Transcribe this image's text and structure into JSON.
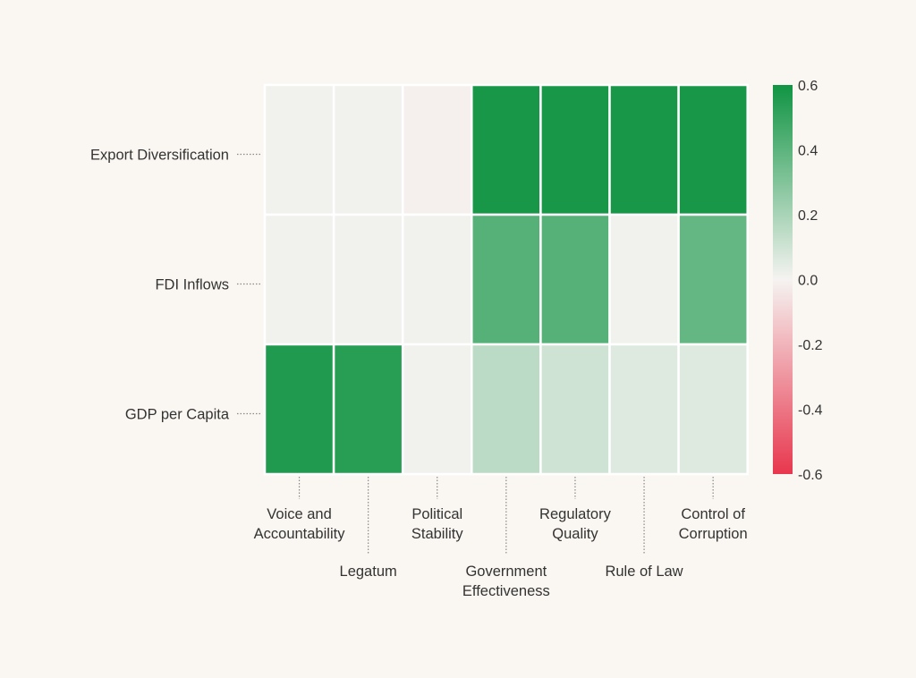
{
  "chart_data": {
    "type": "heatmap",
    "title": "",
    "xlabel": "",
    "ylabel": "",
    "rows": [
      "Export Diversification",
      "FDI Inflows",
      "GDP per Capita"
    ],
    "columns": [
      [
        "Voice and",
        "Accountability"
      ],
      [
        "Legatum"
      ],
      [
        "Political",
        "Stability"
      ],
      [
        "Government",
        "Effectiveness"
      ],
      [
        "Regulatory",
        "Quality"
      ],
      [
        "Rule of Law"
      ],
      [
        "Control of",
        "Corruption"
      ]
    ],
    "values": [
      [
        0.01,
        0.01,
        -0.01,
        0.58,
        0.58,
        0.58,
        0.58
      ],
      [
        0.01,
        0.01,
        0.01,
        0.42,
        0.42,
        0.01,
        0.38
      ],
      [
        0.56,
        0.54,
        0.01,
        0.15,
        0.1,
        0.06,
        0.06
      ]
    ],
    "colorbar": {
      "min": -0.6,
      "max": 0.6,
      "ticks": [
        "0.6",
        "0.4",
        "0.2",
        "0.0",
        "-0.2",
        "-0.4",
        "-0.6"
      ],
      "low_color": "#e8374e",
      "mid_color": "#f5f3f1",
      "high_color": "#109443"
    }
  }
}
